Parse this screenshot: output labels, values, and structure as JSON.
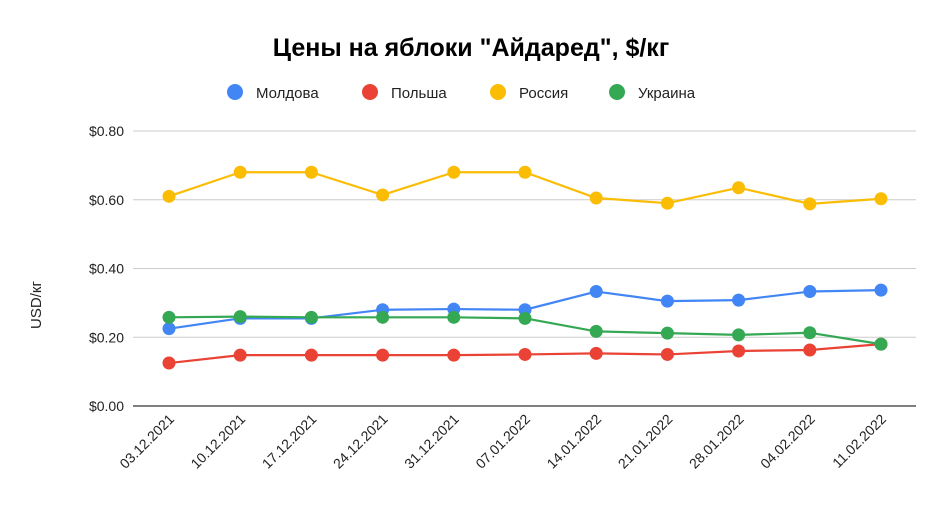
{
  "chart_data": {
    "type": "line",
    "title": "Цены на яблоки \"Айдаред\", $/кг",
    "xlabel": "",
    "ylabel": "USD/кг",
    "ylim": [
      0,
      0.8
    ],
    "yticks": [
      0,
      0.2,
      0.4,
      0.6,
      0.8
    ],
    "ytick_labels": [
      "$0.00",
      "$0.20",
      "$0.40",
      "$0.60",
      "$0.80"
    ],
    "grid": true,
    "legend_position": "top",
    "categories": [
      "03.12.2021",
      "10.12.2021",
      "17.12.2021",
      "24.12.2021",
      "31.12.2021",
      "07.01.2022",
      "14.01.2022",
      "21.01.2022",
      "28.01.2022",
      "04.02.2022",
      "11.02.2022"
    ],
    "series": [
      {
        "name": "Молдова",
        "color": "#4285f4",
        "values": [
          0.225,
          0.255,
          0.255,
          0.28,
          0.282,
          0.28,
          0.333,
          0.305,
          0.308,
          0.333,
          0.337
        ]
      },
      {
        "name": "Польша",
        "color": "#ea4335",
        "values": [
          0.125,
          0.148,
          0.148,
          0.148,
          0.148,
          0.15,
          0.153,
          0.15,
          0.16,
          0.163,
          0.18
        ]
      },
      {
        "name": "Россия",
        "color": "#fbbc04",
        "values": [
          0.61,
          0.68,
          0.68,
          0.614,
          0.68,
          0.68,
          0.605,
          0.59,
          0.635,
          0.588,
          0.603
        ]
      },
      {
        "name": "Украина",
        "color": "#34a853",
        "values": [
          0.258,
          0.26,
          0.258,
          0.258,
          0.258,
          0.255,
          0.217,
          0.212,
          0.207,
          0.213,
          0.18
        ]
      }
    ]
  }
}
